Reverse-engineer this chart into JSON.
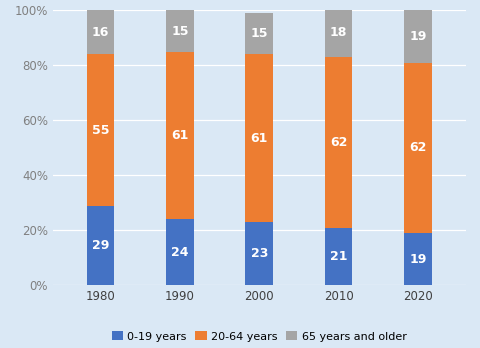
{
  "years": [
    "1980",
    "1990",
    "2000",
    "2010",
    "2020"
  ],
  "young": [
    29,
    24,
    23,
    21,
    19
  ],
  "working": [
    55,
    61,
    61,
    62,
    62
  ],
  "elderly": [
    16,
    15,
    15,
    18,
    19
  ],
  "colors": {
    "young": "#4472C4",
    "working": "#ED7D31",
    "elderly": "#A5A5A5"
  },
  "legend_labels": [
    "0-19 years",
    "20-64 years",
    "65 years and older"
  ],
  "background_color": "#DAE8F5",
  "ylabel_ticks": [
    "0%",
    "20%",
    "40%",
    "60%",
    "80%",
    "100%"
  ],
  "bar_width": 0.35,
  "text_color": "#FFFFFF",
  "fontsize_bar": 9,
  "fontsize_axis": 8.5,
  "fontsize_legend": 8.0,
  "ytick_color": "#808080",
  "xtick_color": "#404040"
}
